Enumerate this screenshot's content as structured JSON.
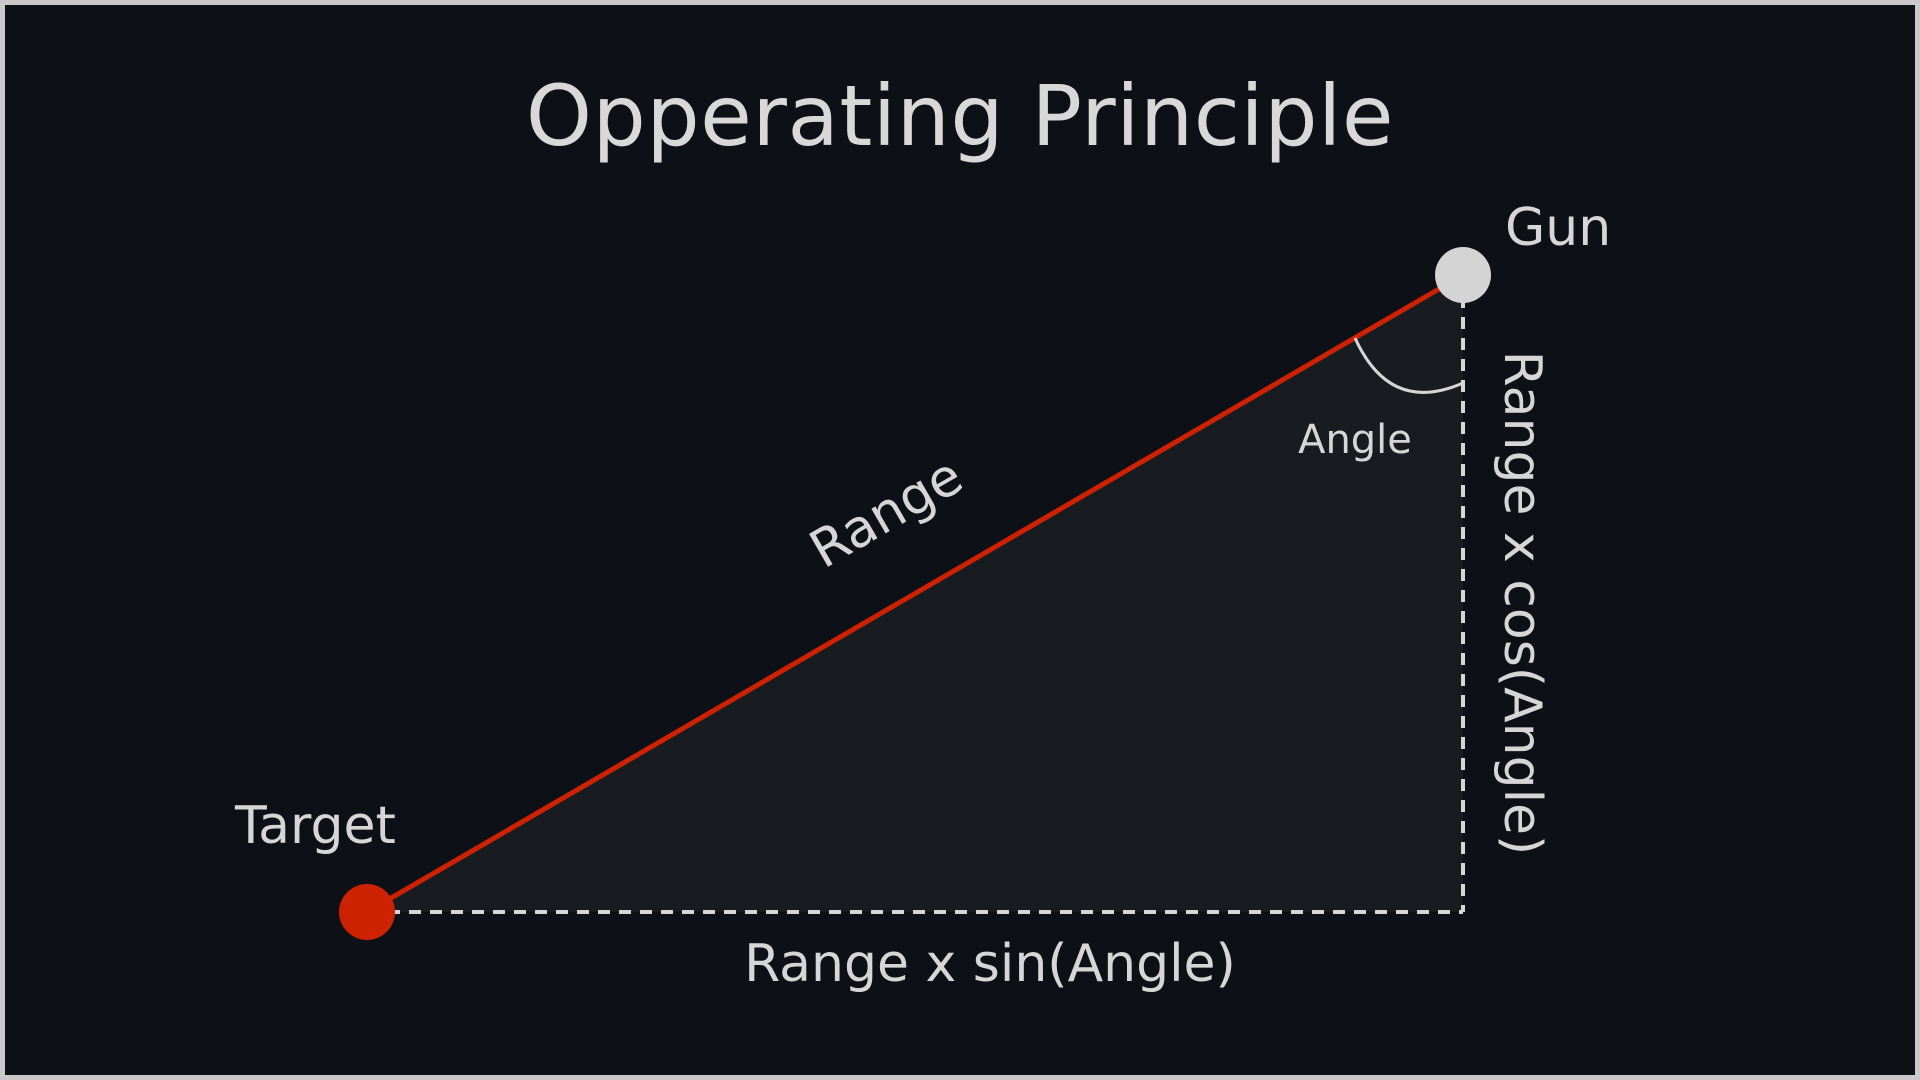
{
  "slide": {
    "title": "Opperating Principle"
  },
  "labels": {
    "gun": "Gun",
    "target": "Target",
    "range": "Range",
    "angle": "Angle",
    "adjacent_side": "Range x cos(Angle)",
    "opposite_side": "Range x sin(Angle)"
  },
  "colors": {
    "background": "#0d1016",
    "triangle_fill": "#181b20",
    "range_line": "#cc2200",
    "target_point": "#cc2200",
    "gun_point": "#d4d4d4",
    "text": "#d6d6d6",
    "border": "#c9c9c9"
  }
}
